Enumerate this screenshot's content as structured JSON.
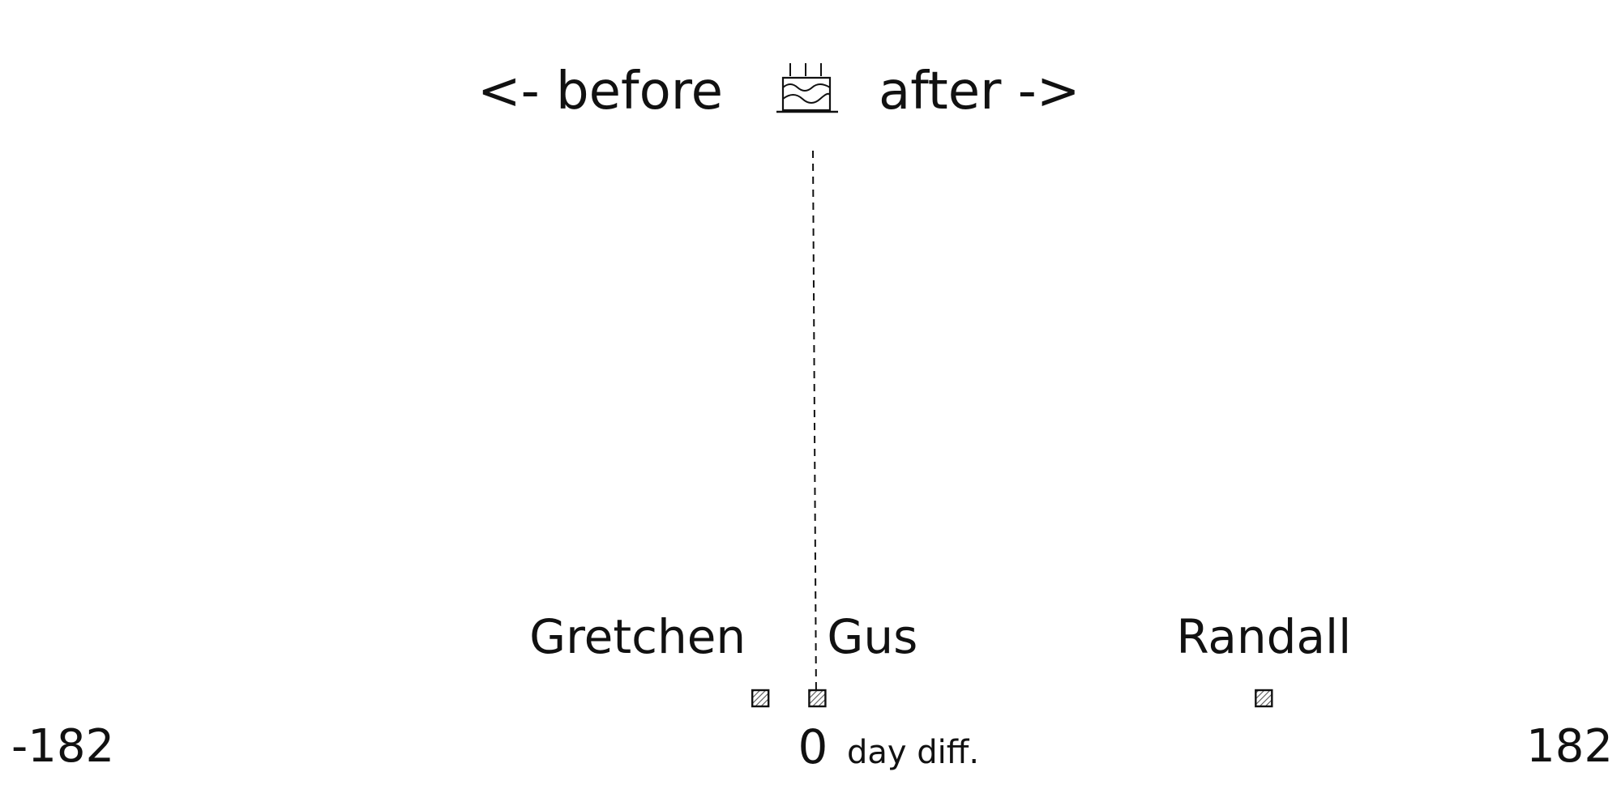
{
  "chart_data": {
    "type": "scatter",
    "title_left": "<- before",
    "title_right": "after ->",
    "title_icon": "birthday-cake-icon",
    "xlim": [
      -182,
      182
    ],
    "x_min_label": "-182",
    "x_max_label": "182",
    "zero_label": "0",
    "unit_label": "day diff.",
    "reference_line_x": 0,
    "points": [
      {
        "name": "Gretchen",
        "x": -12
      },
      {
        "name": "Gus",
        "x": 1
      },
      {
        "name": "Randall",
        "x": 103
      }
    ],
    "colors": {
      "ink": "#111111",
      "marker_fill": "#9a9a9a"
    }
  }
}
